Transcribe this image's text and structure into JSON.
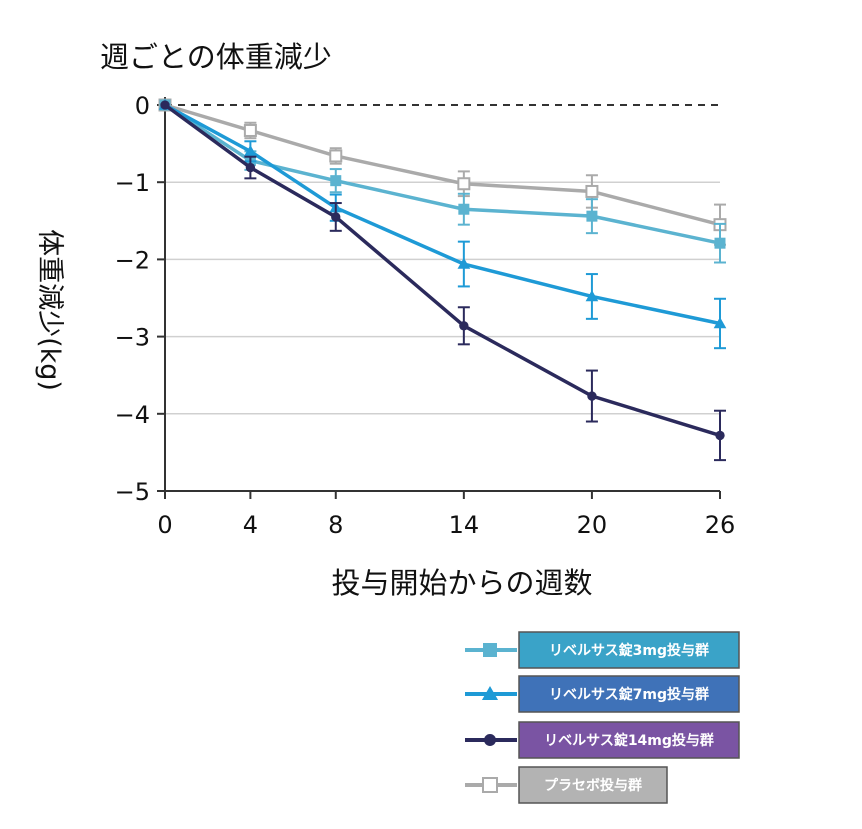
{
  "chart_data": {
    "type": "line",
    "title": "週ごとの体重減少",
    "xlabel": "投与開始からの週数",
    "ylabel": "体重減少(kg)",
    "x": [
      0,
      4,
      8,
      14,
      20,
      26
    ],
    "x_tick_labels": [
      "0",
      "4",
      "8",
      "14",
      "20",
      "26"
    ],
    "y_ticks": [
      0,
      -1,
      -2,
      -3,
      -4,
      -5
    ],
    "y_tick_labels": [
      "0",
      "−1",
      "−2",
      "−3",
      "−4",
      "−5"
    ],
    "ylim": [
      -5,
      0
    ],
    "grid": true,
    "legend_position": "bottom-right",
    "series": [
      {
        "name": "リベルサス錠3mg投与群",
        "marker": "square",
        "color": "#5bb3d0",
        "legend_bg": "#3aa3c8",
        "values": [
          0,
          -0.72,
          -0.98,
          -1.35,
          -1.44,
          -1.79
        ],
        "errors": [
          0.1,
          0.12,
          0.15,
          0.2,
          0.22,
          0.25
        ]
      },
      {
        "name": "リベルサス錠7mg投与群",
        "marker": "triangle",
        "color": "#1e9ad6",
        "legend_bg": "#3f72b8",
        "values": [
          0,
          -0.6,
          -1.33,
          -2.06,
          -2.48,
          -2.83
        ],
        "errors": [
          0.1,
          0.13,
          0.17,
          0.29,
          0.29,
          0.32
        ]
      },
      {
        "name": "リベルサス錠14mg投与群",
        "marker": "circle",
        "color": "#2b2a5c",
        "legend_bg": "#7a54a3",
        "values": [
          0,
          -0.81,
          -1.45,
          -2.86,
          -3.77,
          -4.28
        ],
        "errors": [
          0.1,
          0.14,
          0.18,
          0.24,
          0.33,
          0.32
        ]
      },
      {
        "name": "プラセボ投与群",
        "marker": "open-square",
        "color": "#aaaaaa",
        "legend_bg": "#b3b3b3",
        "values": [
          0,
          -0.33,
          -0.66,
          -1.02,
          -1.12,
          -1.55
        ],
        "errors": [
          0.08,
          0.1,
          0.1,
          0.16,
          0.21,
          0.26
        ]
      }
    ]
  }
}
